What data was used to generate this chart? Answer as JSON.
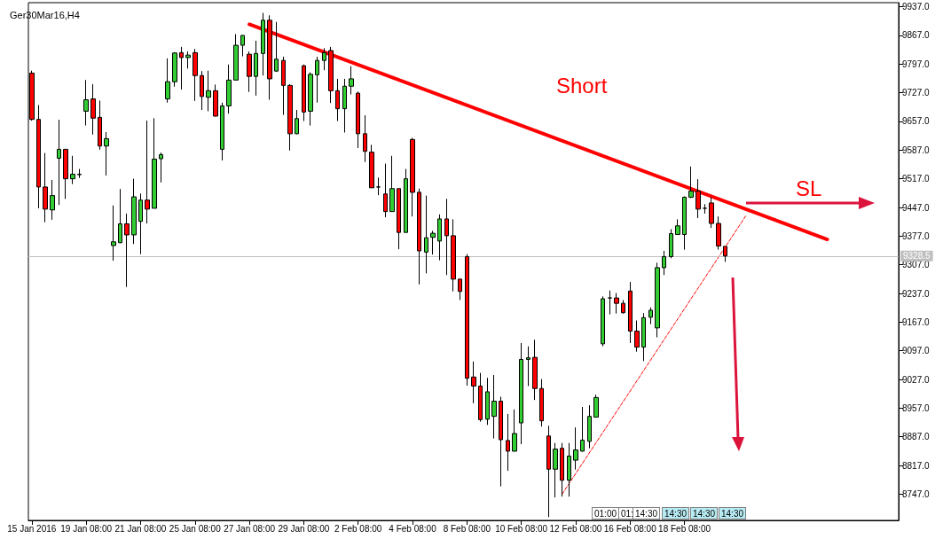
{
  "chart_data": {
    "type": "candlestick",
    "title": "Ger30Mar16,H4",
    "categories": [
      "15 Jan 2016",
      null,
      null,
      null,
      null,
      null,
      null,
      null,
      "19 Jan 08:00",
      null,
      null,
      null,
      null,
      null,
      null,
      null,
      "21 Jan 08:00",
      null,
      null,
      null,
      null,
      null,
      null,
      null,
      "25 Jan 08:00",
      null,
      null,
      null,
      null,
      null,
      null,
      null,
      "27 Jan 08:00",
      null,
      null,
      null,
      null,
      null,
      null,
      null,
      "29 Jan 08:00",
      null,
      null,
      null,
      null,
      null,
      null,
      null,
      "2 Feb 08:00",
      null,
      null,
      null,
      null,
      null,
      null,
      null,
      "4 Feb 08:00",
      null,
      null,
      null,
      null,
      null,
      null,
      null,
      "8 Feb 08:00",
      null,
      null,
      null,
      null,
      null,
      null,
      null,
      "10 Feb 08:00",
      null,
      null,
      null,
      null,
      null,
      null,
      null,
      "12 Feb 08:00",
      null,
      null,
      null,
      null,
      null,
      null,
      null,
      "16 Feb 08:00",
      null,
      null,
      null,
      null,
      null,
      null,
      null,
      "18 Feb 08:00",
      null,
      null,
      null,
      null,
      null,
      null,
      null,
      null,
      null,
      null,
      null,
      null,
      null,
      null,
      null,
      null,
      null,
      null,
      null,
      null,
      null,
      null,
      null,
      null,
      null,
      null,
      null,
      null,
      null,
      null,
      null
    ],
    "series": [
      {
        "ohlc": [
          [
            9775,
            9781,
            9659,
            9662
          ],
          [
            9662,
            9697,
            9445,
            9497
          ],
          [
            9497,
            9580,
            9411,
            9443
          ],
          [
            9441,
            9514,
            9417,
            9476
          ],
          [
            9567,
            9661,
            9453,
            9589
          ],
          [
            9589,
            9590,
            9468,
            9517
          ],
          [
            9517,
            9573,
            9504,
            9528
          ],
          [
            9527,
            9541,
            9519,
            9528
          ],
          [
            9682,
            9758,
            9647,
            9710
          ],
          [
            9712,
            9748,
            9625,
            9665
          ],
          [
            9667,
            9708,
            9588,
            9597
          ],
          [
            9597,
            9631,
            9525,
            9615
          ],
          [
            9354,
            9452,
            9317,
            9363
          ],
          [
            9361,
            9492,
            9360,
            9407
          ],
          [
            9407,
            9432,
            9253,
            9380
          ],
          [
            9380,
            9517,
            9358,
            9473
          ],
          [
            9413,
            9481,
            9333,
            9465
          ],
          [
            9465,
            9659,
            9408,
            9443
          ],
          [
            9445,
            9665,
            9445,
            9565
          ],
          [
            9566,
            9581,
            9508,
            9576
          ],
          [
            9712,
            9811,
            9703,
            9754
          ],
          [
            9754,
            9826,
            9742,
            9824
          ],
          [
            9825,
            9839,
            9735,
            9813
          ],
          [
            9813,
            9828,
            9786,
            9819
          ],
          [
            9825,
            9834,
            9707,
            9769
          ],
          [
            9769,
            9780,
            9685,
            9718
          ],
          [
            9716,
            9781,
            9682,
            9732
          ],
          [
            9732,
            9747,
            9669,
            9670
          ],
          [
            9589,
            9703,
            9562,
            9695
          ],
          [
            9695,
            9796,
            9676,
            9758
          ],
          [
            9758,
            9870,
            9758,
            9843
          ],
          [
            9843,
            9868,
            9816,
            9867
          ],
          [
            9821,
            9828,
            9729,
            9767
          ],
          [
            9767,
            9854,
            9720,
            9823
          ],
          [
            9823,
            9922,
            9769,
            9904
          ],
          [
            9904,
            9916,
            9710,
            9761
          ],
          [
            9780,
            9900,
            9778,
            9809
          ],
          [
            9806,
            9815,
            9673,
            9745
          ],
          [
            9745,
            9748,
            9586,
            9627
          ],
          [
            9627,
            9685,
            9626,
            9664
          ],
          [
            9793,
            9796,
            9658,
            9680
          ],
          [
            9682,
            9777,
            9647,
            9772
          ],
          [
            9771,
            9815,
            9703,
            9806
          ],
          [
            9806,
            9836,
            9782,
            9825
          ],
          [
            9830,
            9839,
            9702,
            9732
          ],
          [
            9732,
            9761,
            9658,
            9688
          ],
          [
            9688,
            9761,
            9630,
            9743
          ],
          [
            9743,
            9792,
            9723,
            9761
          ],
          [
            9726,
            9730,
            9592,
            9627
          ],
          [
            9627,
            9672,
            9558,
            9584
          ],
          [
            9582,
            9600,
            9495,
            9495
          ],
          [
            9497,
            9520,
            9477,
            9497
          ],
          [
            9480,
            9554,
            9423,
            9437
          ],
          [
            9437,
            9573,
            9437,
            9493
          ],
          [
            9493,
            9493,
            9345,
            9386
          ],
          [
            9386,
            9541,
            9386,
            9517
          ],
          [
            9613,
            9617,
            9425,
            9484
          ],
          [
            9484,
            9493,
            9259,
            9341
          ],
          [
            9338,
            9476,
            9286,
            9373
          ],
          [
            9374,
            9390,
            9332,
            9384
          ],
          [
            9365,
            9430,
            9318,
            9419
          ],
          [
            9419,
            9468,
            9282,
            9378
          ],
          [
            9378,
            9418,
            9242,
            9272
          ],
          [
            9272,
            9272,
            9221,
            9242
          ],
          [
            9327,
            9333,
            9012,
            9030
          ],
          [
            9033,
            9071,
            8969,
            9011
          ],
          [
            9011,
            9043,
            8924,
            8929
          ],
          [
            8930,
            9031,
            8916,
            8997
          ],
          [
            8937,
            9038,
            8883,
            8974
          ],
          [
            8974,
            8985,
            8766,
            8880
          ],
          [
            8878,
            8943,
            8804,
            8852
          ],
          [
            8852,
            8954,
            8851,
            8895
          ],
          [
            8921,
            9116,
            8869,
            9076
          ],
          [
            9076,
            9108,
            9011,
            9080
          ],
          [
            9081,
            9124,
            8977,
            9005
          ],
          [
            9005,
            9028,
            8912,
            8926
          ],
          [
            8889,
            8914,
            8691,
            8808
          ],
          [
            8808,
            8872,
            8739,
            8857
          ],
          [
            8859,
            8872,
            8741,
            8781
          ],
          [
            8781,
            8872,
            8741,
            8840
          ],
          [
            8830,
            8910,
            8807,
            8855
          ],
          [
            8852,
            8960,
            8851,
            8879
          ],
          [
            8876,
            8964,
            8859,
            8937
          ],
          [
            8935,
            8990,
            8935,
            8983
          ],
          [
            9114,
            9230,
            9108,
            9224
          ],
          [
            9226,
            9244,
            9186,
            9226
          ],
          [
            9226,
            9238,
            9188,
            9213
          ],
          [
            9213,
            9221,
            9188,
            9190
          ],
          [
            9243,
            9265,
            9116,
            9145
          ],
          [
            9145,
            9171,
            9095,
            9106
          ],
          [
            9106,
            9189,
            9072,
            9178
          ],
          [
            9179,
            9203,
            9162,
            9196
          ],
          [
            9153,
            9312,
            9130,
            9300
          ],
          [
            9300,
            9341,
            9282,
            9327
          ],
          [
            9327,
            9394,
            9323,
            9383
          ],
          [
            9381,
            9418,
            9381,
            9402
          ],
          [
            9381,
            9474,
            9344,
            9472
          ],
          [
            9472,
            9547,
            9470,
            9487
          ],
          [
            9487,
            9516,
            9421,
            9443
          ],
          [
            9445,
            9455,
            9432,
            9445
          ],
          [
            9458,
            9472,
            9397,
            9408
          ],
          [
            9408,
            9425,
            9344,
            9353
          ],
          [
            9352,
            9352,
            9314,
            9328.5
          ],
          null,
          null,
          null,
          null,
          null,
          null,
          null,
          null,
          null,
          null,
          null,
          null,
          null,
          null,
          null,
          null,
          null,
          null,
          null,
          null,
          null,
          null,
          null,
          null,
          null
        ]
      },
      {
        "type": "line",
        "color": "#ff0000",
        "line_style": "solid",
        "values": [
          null,
          null,
          null,
          null,
          null,
          null,
          null,
          null,
          null,
          null,
          null,
          null,
          null,
          null,
          null,
          null,
          null,
          null,
          null,
          null,
          null,
          null,
          null,
          null,
          null,
          null,
          null,
          null,
          null,
          null,
          null,
          null,
          9894,
          null,
          null,
          null,
          null,
          null,
          null,
          null,
          null,
          null,
          null,
          null,
          null,
          null,
          null,
          null,
          null,
          null,
          null,
          null,
          null,
          null,
          null,
          null,
          null,
          null,
          null,
          null,
          null,
          null,
          null,
          null,
          null,
          null,
          null,
          null,
          null,
          null,
          null,
          null,
          null,
          null,
          null,
          null,
          null,
          null,
          null,
          null,
          null,
          null,
          null,
          null,
          null,
          null,
          null,
          null,
          null,
          null,
          null,
          null,
          null,
          null,
          null,
          null,
          null,
          null,
          null,
          null,
          null,
          null,
          null,
          null,
          null,
          null,
          null,
          null,
          null,
          null,
          null,
          null,
          null,
          null,
          null,
          null,
          null,
          9369,
          null,
          null,
          null,
          null,
          null,
          null,
          null,
          null,
          null,
          null
        ]
      },
      {
        "type": "line",
        "color": "#ff0000",
        "line_style": "dashed",
        "values": [
          null,
          null,
          null,
          null,
          null,
          null,
          null,
          null,
          null,
          null,
          null,
          null,
          null,
          null,
          null,
          null,
          null,
          null,
          null,
          null,
          null,
          null,
          null,
          null,
          null,
          null,
          null,
          null,
          null,
          null,
          null,
          null,
          null,
          null,
          null,
          null,
          null,
          null,
          null,
          null,
          null,
          null,
          null,
          null,
          null,
          null,
          null,
          null,
          null,
          null,
          null,
          null,
          null,
          null,
          null,
          null,
          null,
          null,
          null,
          null,
          null,
          null,
          null,
          null,
          null,
          null,
          null,
          null,
          null,
          null,
          null,
          null,
          null,
          null,
          null,
          null,
          null,
          null,
          8747,
          null,
          null,
          null,
          null,
          null,
          null,
          null,
          null,
          null,
          null,
          null,
          null,
          null,
          null,
          null,
          null,
          null,
          null,
          null,
          null,
          null,
          null,
          null,
          null,
          null,
          null,
          9426,
          null,
          null,
          null,
          null,
          null,
          null,
          null,
          null,
          null,
          null,
          null,
          null,
          null,
          null,
          null,
          null,
          null,
          null,
          null,
          null,
          null,
          null
        ]
      }
    ],
    "ylim": [
      8683,
      9947
    ],
    "yticks": [
      {
        "value": 8747,
        "label": "8747.0"
      },
      {
        "value": 8817,
        "label": "8817.0"
      },
      {
        "value": 8887,
        "label": "8887.0"
      },
      {
        "value": 8957,
        "label": "8957.0"
      },
      {
        "value": 9027,
        "label": "9027.0"
      },
      {
        "value": 9097,
        "label": "9097.0"
      },
      {
        "value": 9167,
        "label": "9167.0"
      },
      {
        "value": 9237,
        "label": "9237.0"
      },
      {
        "value": 9307,
        "label": "9307.0"
      },
      {
        "value": 9377,
        "label": "9377.0"
      },
      {
        "value": 9447,
        "label": "9447.0"
      },
      {
        "value": 9517,
        "label": "9517.0"
      },
      {
        "value": 9587,
        "label": "9587.0"
      },
      {
        "value": 9657,
        "label": "9657.0"
      },
      {
        "value": 9727,
        "label": "9727.0"
      },
      {
        "value": 9797,
        "label": "9797.0"
      },
      {
        "value": 9867,
        "label": "9867.0"
      },
      {
        "value": 9937,
        "label": "9937.0"
      }
    ],
    "ref_lines": [
      {
        "axis": "y",
        "value": 9328.5,
        "label": "9328.5",
        "color": "#c0c0c0"
      }
    ],
    "annotations": [
      "Short",
      "SL",
      "01:00",
      "01:",
      "14:30",
      "14:30",
      "14:30",
      "14:30"
    ],
    "grid": false,
    "marker": "none"
  }
}
